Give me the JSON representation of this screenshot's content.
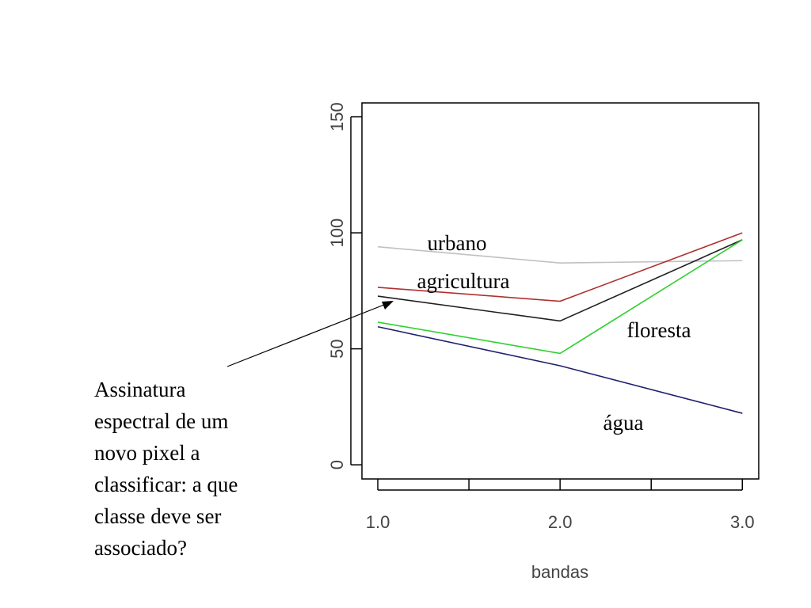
{
  "chart_data": {
    "type": "line",
    "x": [
      1,
      2,
      3
    ],
    "series": [
      {
        "name": "urbano",
        "color": "#c0c0c0",
        "values": [
          94,
          87,
          88
        ]
      },
      {
        "name": "agricultura",
        "color": "#b03030",
        "values": [
          76.5,
          70.5,
          100
        ]
      },
      {
        "color": "#202020",
        "values": [
          72.7,
          62,
          97
        ]
      },
      {
        "name": "floresta",
        "color": "#30d030",
        "values": [
          61.5,
          48,
          97
        ]
      },
      {
        "name": "água",
        "color": "#202070",
        "values": [
          59.5,
          42.7,
          22.2
        ]
      }
    ],
    "xlabel": "bandas",
    "xlim": [
      0.913,
      3.09
    ],
    "xticks": [
      {
        "value": 1,
        "label": "1.0"
      },
      {
        "value": 2,
        "label": "2.0"
      },
      {
        "value": 3,
        "label": "3.0"
      }
    ],
    "xminorticks": [
      1.5,
      2.5
    ],
    "ylim": [
      -6.1,
      156
    ],
    "yticks": [
      0,
      50,
      100,
      150
    ],
    "annotation": [
      "Assinatura",
      "espectral de um",
      "novo pixel a",
      "classificar: a que",
      "classe deve ser",
      "associado?"
    ]
  }
}
